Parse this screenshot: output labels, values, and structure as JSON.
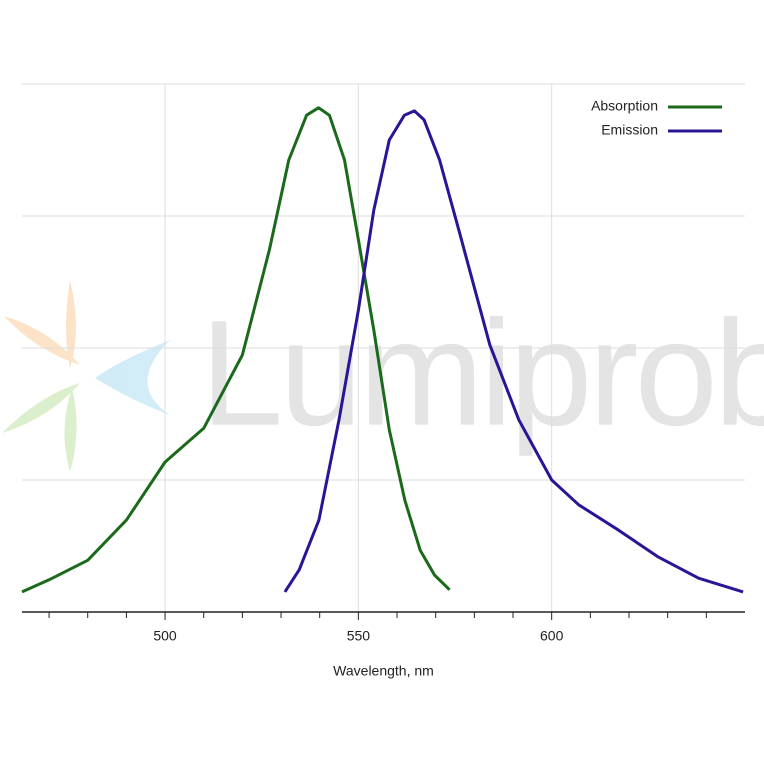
{
  "chart_data": {
    "type": "line",
    "xlabel": "Wavelength, nm",
    "watermark": "Lumiprobe",
    "xlim": [
      463,
      650
    ],
    "xticks": [
      500,
      550,
      600
    ],
    "xminor": [
      470,
      480,
      490,
      510,
      520,
      530,
      540,
      560,
      570,
      580,
      590,
      610,
      620,
      630,
      640
    ],
    "ylim": [
      0,
      1
    ],
    "yticks": [
      0,
      0.25,
      0.5,
      0.75,
      1
    ],
    "ytick_labels": false,
    "grid": true,
    "legend": "upper right",
    "series": [
      {
        "name": "Absorption",
        "color": "#1b6a1b",
        "x": [
          463,
          470,
          480,
          490,
          500,
          510,
          520,
          527,
          532,
          536.6,
          539.7,
          542.5,
          546.4,
          550,
          554,
          558,
          562,
          566,
          569.7,
          573.6
        ],
        "values": [
          0.038,
          0.061,
          0.098,
          0.174,
          0.284,
          0.348,
          0.487,
          0.686,
          0.856,
          0.941,
          0.955,
          0.941,
          0.856,
          0.705,
          0.534,
          0.345,
          0.212,
          0.117,
          0.07,
          0.042
        ]
      },
      {
        "name": "Emission",
        "color": "#2b1596",
        "x": [
          531,
          534.7,
          539.8,
          545,
          550,
          554,
          558,
          561.9,
          564.5,
          567,
          571,
          576,
          584,
          591.5,
          600,
          607,
          617.3,
          627.6,
          638,
          649.5
        ],
        "values": [
          0.038,
          0.08,
          0.174,
          0.364,
          0.572,
          0.761,
          0.894,
          0.941,
          0.949,
          0.932,
          0.856,
          0.723,
          0.506,
          0.364,
          0.25,
          0.203,
          0.155,
          0.104,
          0.064,
          0.038
        ]
      }
    ]
  }
}
